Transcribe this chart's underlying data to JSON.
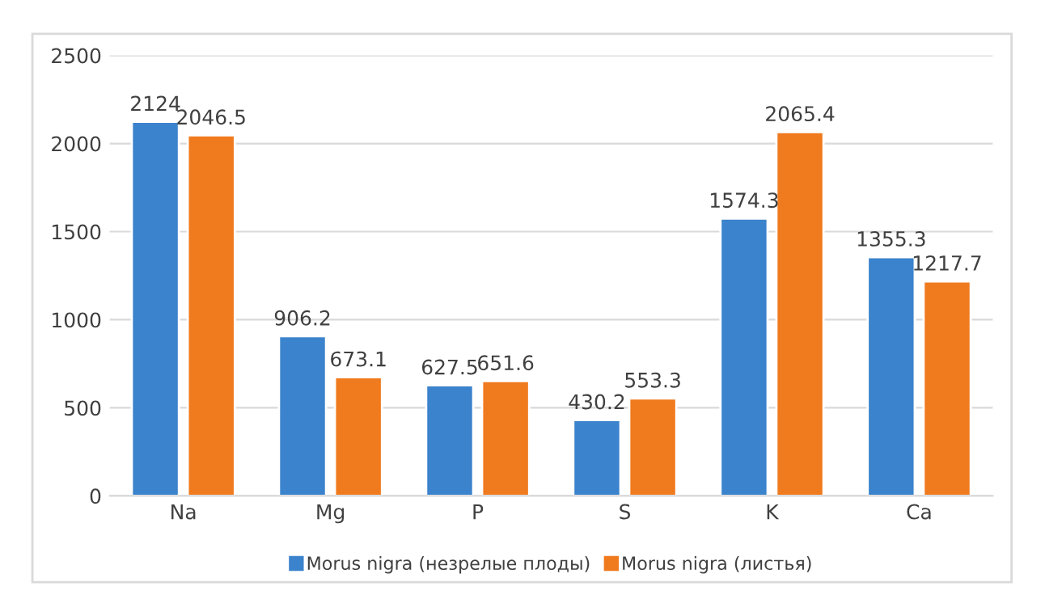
{
  "chart_data": {
    "type": "bar",
    "categories": [
      "Na",
      "Mg",
      "P",
      "S",
      "K",
      "Ca"
    ],
    "series": [
      {
        "name": "Morus nigra (незрелые плоды)",
        "color": "#3b83cc",
        "values": [
          2124,
          906.2,
          627.5,
          430.2,
          1574.3,
          1355.3
        ]
      },
      {
        "name": "Morus nigra (листья)",
        "color": "#f07a1e",
        "values": [
          2046.5,
          673.1,
          651.6,
          553.3,
          2065.4,
          1217.7
        ]
      }
    ],
    "ylim": [
      0,
      2500
    ],
    "yticks": [
      0,
      500,
      1000,
      1500,
      2000,
      2500
    ],
    "grid": "y",
    "legend": "bottom",
    "data_labels": true
  }
}
